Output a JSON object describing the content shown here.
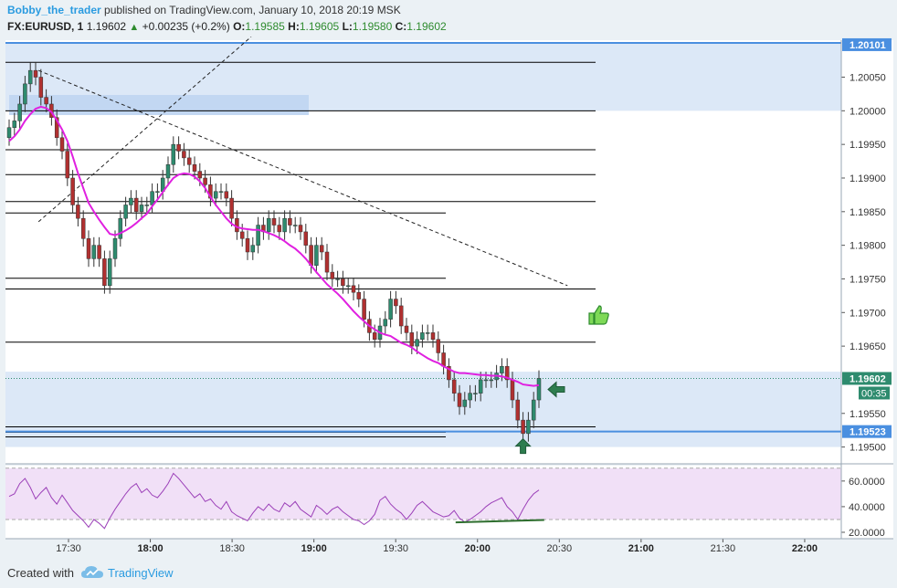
{
  "header": {
    "user": "Bobby_the_trader",
    "published": " published on TradingView.com, January 10, 2018 20:19 MSK",
    "symbol": "FX:EURUSD, 1",
    "last": "1.19602",
    "change": "+0.00235 (+0.2%)",
    "o_label": "O:",
    "o_value": "1.19585",
    "h_label": "H:",
    "h_value": "1.19605",
    "l_label": "L:",
    "l_value": "1.19580",
    "c_label": "C:",
    "c_value": "1.19602"
  },
  "footer": {
    "created_with": "Created with",
    "brand": "TradingView"
  },
  "colors": {
    "background": "#ebf1f5",
    "bull": "#2e8b6e",
    "bear": "#b03030",
    "ma": "#e020e0",
    "zone": "#dce8f7",
    "zone_border": "#4a8fe0",
    "rsi_line": "#9b3fb8",
    "rsi_band": "#f1e0f7"
  },
  "icons": {
    "thumb": "thumbs-up-icon",
    "arrow_left": "arrow-left-icon",
    "arrow_up": "arrow-up-icon",
    "cloud": "tradingview-cloud-icon"
  },
  "chart_data": [
    {
      "type": "candlestick",
      "symbol": "FX:EURUSD",
      "interval": "1",
      "ylim": [
        1.19475,
        1.20105
      ],
      "price_axis_ticks": [
        "1.20050",
        "1.20000",
        "1.19950",
        "1.19900",
        "1.19850",
        "1.19800",
        "1.19750",
        "1.19700",
        "1.19650",
        "1.19550",
        "1.19500"
      ],
      "time_axis_ticks": [
        {
          "label": "17:30",
          "bold": false
        },
        {
          "label": "18:00",
          "bold": true
        },
        {
          "label": "18:30",
          "bold": false
        },
        {
          "label": "19:00",
          "bold": true
        },
        {
          "label": "19:30",
          "bold": false
        },
        {
          "label": "20:00",
          "bold": true
        },
        {
          "label": "20:30",
          "bold": false
        },
        {
          "label": "21:00",
          "bold": true
        },
        {
          "label": "21:30",
          "bold": false
        },
        {
          "label": "22:00",
          "bold": true
        }
      ],
      "price_labels": {
        "top": "1.20101",
        "last": "1.19602",
        "countdown": "00:35",
        "support": "1.19523"
      },
      "horizontal_levels": [
        1.20072,
        1.2,
        1.19942,
        1.19905,
        1.19865,
        1.19848,
        1.19751,
        1.19735,
        1.19656,
        1.1953,
        1.19522,
        1.19515
      ],
      "zones": [
        {
          "from": 1.2,
          "to": 1.20101
        },
        {
          "from": 1.195,
          "to": 1.19612
        }
      ],
      "support_line": 1.19523,
      "last_price_line": 1.19602,
      "trendlines": [
        {
          "from": [
            "17:19",
            1.2006
          ],
          "to": [
            "20:33",
            1.1974
          ]
        },
        {
          "from": [
            "17:19",
            1.19835
          ],
          "to": [
            "18:37",
            1.2011
          ]
        }
      ],
      "closes": [
        1.19975,
        1.19985,
        1.2001,
        1.2004,
        1.2006,
        1.2005,
        1.2002,
        1.2001,
        1.1999,
        1.1996,
        1.1994,
        1.199,
        1.1986,
        1.1984,
        1.1981,
        1.1978,
        1.198,
        1.1978,
        1.1974,
        1.1978,
        1.1981,
        1.1984,
        1.1986,
        1.1987,
        1.1985,
        1.1986,
        1.1986,
        1.1988,
        1.1988,
        1.199,
        1.1992,
        1.1995,
        1.1994,
        1.1993,
        1.1992,
        1.1991,
        1.199,
        1.1989,
        1.1987,
        1.1988,
        1.1988,
        1.1987,
        1.1984,
        1.1982,
        1.1981,
        1.1979,
        1.198,
        1.1983,
        1.1982,
        1.1984,
        1.1983,
        1.1982,
        1.1984,
        1.1983,
        1.1983,
        1.1982,
        1.198,
        1.1977,
        1.198,
        1.1979,
        1.1976,
        1.1975,
        1.1975,
        1.1974,
        1.1974,
        1.1973,
        1.1972,
        1.1969,
        1.1967,
        1.1966,
        1.1968,
        1.1969,
        1.1972,
        1.1971,
        1.1968,
        1.1967,
        1.1965,
        1.1966,
        1.1967,
        1.1967,
        1.1966,
        1.1964,
        1.1962,
        1.196,
        1.1958,
        1.1956,
        1.1957,
        1.1958,
        1.1958,
        1.196,
        1.196,
        1.196,
        1.1961,
        1.1962,
        1.196,
        1.1957,
        1.1954,
        1.1952,
        1.1954,
        1.1957,
        1.19602
      ],
      "moving_average": [
        1.19955,
        1.19962,
        1.19972,
        1.19985,
        1.19995,
        1.20003,
        1.20006,
        1.20004,
        1.19998,
        1.19986,
        1.19972,
        1.19955,
        1.19932,
        1.19907,
        1.19885,
        1.19863,
        1.1985,
        1.19838,
        1.19827,
        1.19817,
        1.19815,
        1.19818,
        1.19822,
        1.19827,
        1.19833,
        1.1984,
        1.19847,
        1.19858,
        1.19868,
        1.19879,
        1.1989,
        1.199,
        1.19905,
        1.19907,
        1.19906,
        1.19902,
        1.19895,
        1.19885,
        1.19872,
        1.1986,
        1.1985,
        1.1984,
        1.19832,
        1.19827,
        1.19825,
        1.19824,
        1.19823,
        1.19823,
        1.19821,
        1.19818,
        1.19815,
        1.19811,
        1.19806,
        1.198,
        1.19795,
        1.19788,
        1.1978,
        1.1977,
        1.1976,
        1.19751,
        1.19742,
        1.19735,
        1.19728,
        1.1972,
        1.19711,
        1.19702,
        1.19694,
        1.19687,
        1.1968,
        1.19675,
        1.1967,
        1.19667,
        1.19665,
        1.1966,
        1.19655,
        1.19652,
        1.19648,
        1.19642,
        1.19637,
        1.19632,
        1.19628,
        1.19625,
        1.1962,
        1.19616,
        1.19612,
        1.1961,
        1.1961,
        1.19609,
        1.19608,
        1.19607,
        1.19607,
        1.19606,
        1.19606,
        1.19605,
        1.19603,
        1.196,
        1.19597,
        1.19593,
        1.19592,
        1.19591,
        1.19592
      ]
    },
    {
      "type": "line",
      "name": "",
      "ylim": [
        15,
        72
      ],
      "axis_ticks": [
        "60.0000",
        "40.0000",
        "20.0000"
      ],
      "band": [
        30,
        70
      ],
      "values": [
        48,
        50,
        58,
        62,
        55,
        46,
        51,
        55,
        47,
        42,
        49,
        43,
        37,
        33,
        29,
        24,
        30,
        27,
        23,
        31,
        38,
        44,
        50,
        55,
        58,
        51,
        54,
        49,
        47,
        52,
        58,
        66,
        62,
        57,
        52,
        47,
        50,
        44,
        46,
        41,
        38,
        44,
        36,
        33,
        31,
        29,
        35,
        40,
        37,
        42,
        38,
        36,
        43,
        40,
        44,
        38,
        35,
        32,
        41,
        38,
        34,
        38,
        40,
        36,
        33,
        30,
        29,
        26,
        29,
        34,
        45,
        48,
        42,
        38,
        35,
        30,
        35,
        41,
        44,
        40,
        36,
        34,
        32,
        33,
        37,
        31,
        28,
        30,
        33,
        36,
        40,
        43,
        45,
        47,
        40,
        36,
        30,
        38,
        45,
        50,
        53
      ],
      "divergence_line": {
        "from": [
          96,
          27.7
        ],
        "to": [
          101,
          29.6
        ]
      }
    }
  ]
}
